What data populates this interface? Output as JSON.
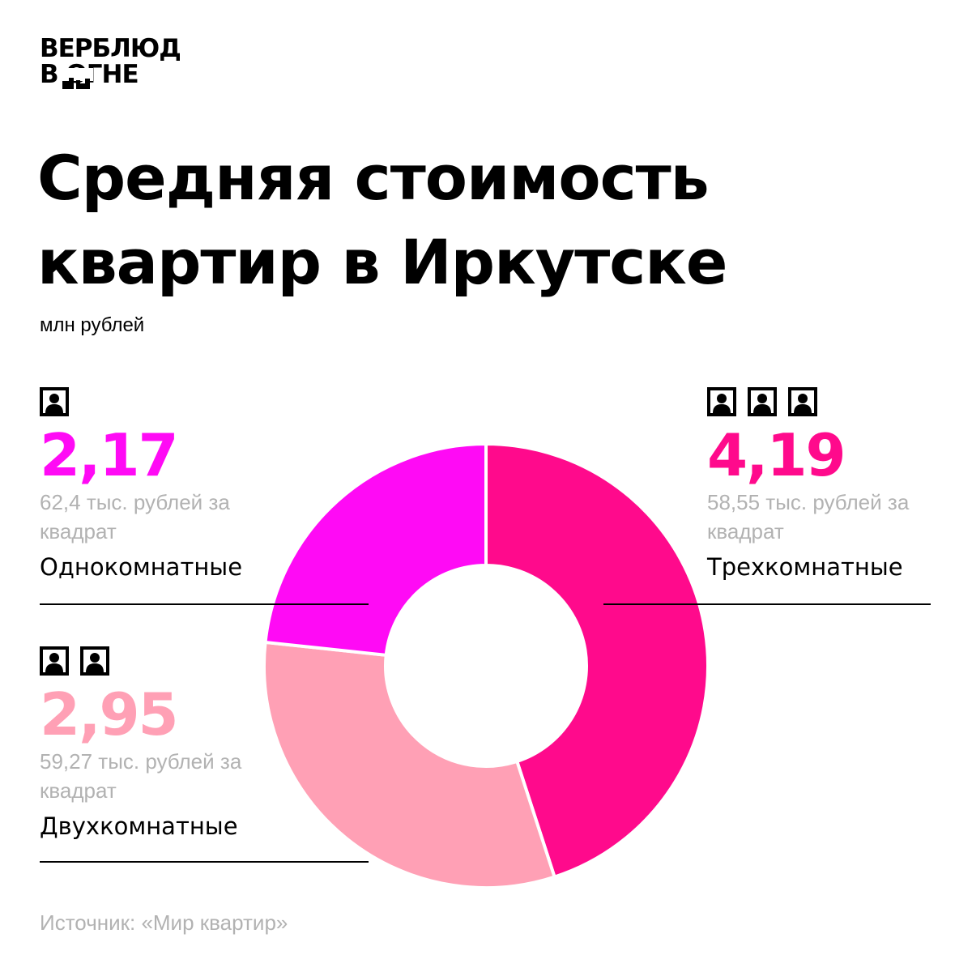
{
  "logo": {
    "line1": "ВЕРБЛЮД",
    "line2": "В  ОГНЕ"
  },
  "colors": {
    "one_room": "#ff0af5",
    "two_room": "#ffa0b5",
    "three_room": "#ff0a8c",
    "muted": "#b2b2b2"
  },
  "chart_data": {
    "type": "pie",
    "title": "Средняя стоимость квартир в Иркутске",
    "subtitle": "млн рублей",
    "categories": [
      "Однокомнатные",
      "Двухкомнатные",
      "Трехкомнатные"
    ],
    "values": [
      2.17,
      2.95,
      4.19
    ],
    "value_labels": [
      "2,17",
      "2,95",
      "4,19"
    ],
    "per_sqm": [
      "62,4 тыс. рублей",
      "59,27 тыс. рублей",
      "58,55 тыс. рублей"
    ],
    "per_sqm_suffix": "за квадрат",
    "rooms": [
      1,
      2,
      3
    ],
    "colors": [
      "#ff0af5",
      "#ffa0b5",
      "#ff0a8c"
    ]
  },
  "source": "Источник: «Мир квартир»"
}
